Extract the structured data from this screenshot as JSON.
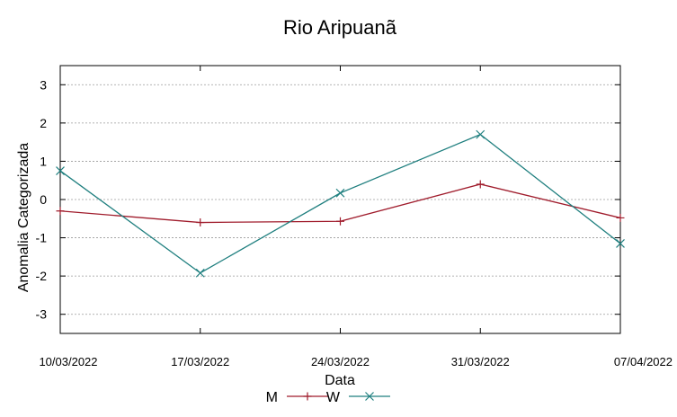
{
  "chart_data": {
    "type": "line",
    "title": "Rio Aripuanã",
    "xlabel": "Data",
    "ylabel": "Anomalia Categorizada",
    "categories": [
      "10/03/2022",
      "17/03/2022",
      "24/03/2022",
      "31/03/2022",
      "07/04/2022"
    ],
    "yticks": [
      "3",
      "2",
      "1",
      "0",
      "-1",
      "-2",
      "-3"
    ],
    "ylim": [
      -3.5,
      3.5
    ],
    "grid": true,
    "legend_position": "bottom",
    "series": [
      {
        "name": "M",
        "color": "#a01c2c",
        "marker": "plus",
        "values": [
          -0.3,
          -0.6,
          -0.57,
          0.4,
          -0.48
        ]
      },
      {
        "name": "W",
        "color": "#1f7f7f",
        "marker": "cross",
        "values": [
          0.75,
          -1.92,
          0.17,
          1.7,
          -1.15
        ]
      }
    ]
  }
}
